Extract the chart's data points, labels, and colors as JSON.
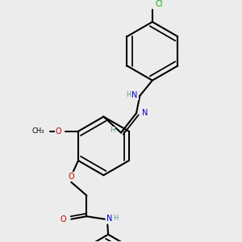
{
  "bg_color": "#ececec",
  "bond_color": "#000000",
  "bond_width": 1.5,
  "atom_colors": {
    "C": "#000000",
    "N": "#0000cc",
    "O": "#cc0000",
    "Cl": "#00aa00",
    "H": "#5599aa"
  },
  "font_size": 7.0
}
